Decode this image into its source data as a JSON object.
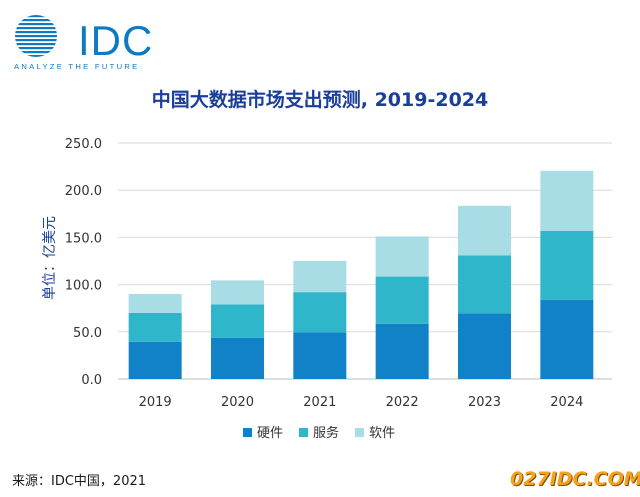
{
  "logo": {
    "text": "IDC",
    "tagline": "ANALYZE THE FUTURE"
  },
  "colors": {
    "hardware": "#1181c8",
    "services": "#2fb6cb",
    "software": "#a9dde6",
    "title": "#1a3f99",
    "axis_text": "#333333",
    "gridline": "#d9d9d9",
    "brand": "#0d7ac4"
  },
  "chart_data": {
    "type": "bar",
    "stacked": true,
    "title": "中国大数据市场支出预测, 2019-2024",
    "ylabel": "单位：亿美元",
    "xlabel": "",
    "categories": [
      "2019",
      "2020",
      "2021",
      "2022",
      "2023",
      "2024"
    ],
    "series": [
      {
        "name": "硬件",
        "values": [
          39.5,
          43.5,
          49.5,
          58.5,
          69.5,
          84.0
        ]
      },
      {
        "name": "服务",
        "values": [
          30.5,
          35.5,
          42.5,
          50.0,
          61.5,
          73.0
        ]
      },
      {
        "name": "软件",
        "values": [
          20.0,
          25.5,
          33.0,
          42.5,
          52.5,
          63.5
        ]
      }
    ],
    "ylim": [
      0,
      250
    ],
    "yticks": [
      "0.0",
      "50.0",
      "100.0",
      "150.0",
      "200.0",
      "250.0"
    ],
    "grid": true,
    "legend": "bottom"
  },
  "source": "来源：IDC中国，2021",
  "watermark": "027IDC.COM"
}
